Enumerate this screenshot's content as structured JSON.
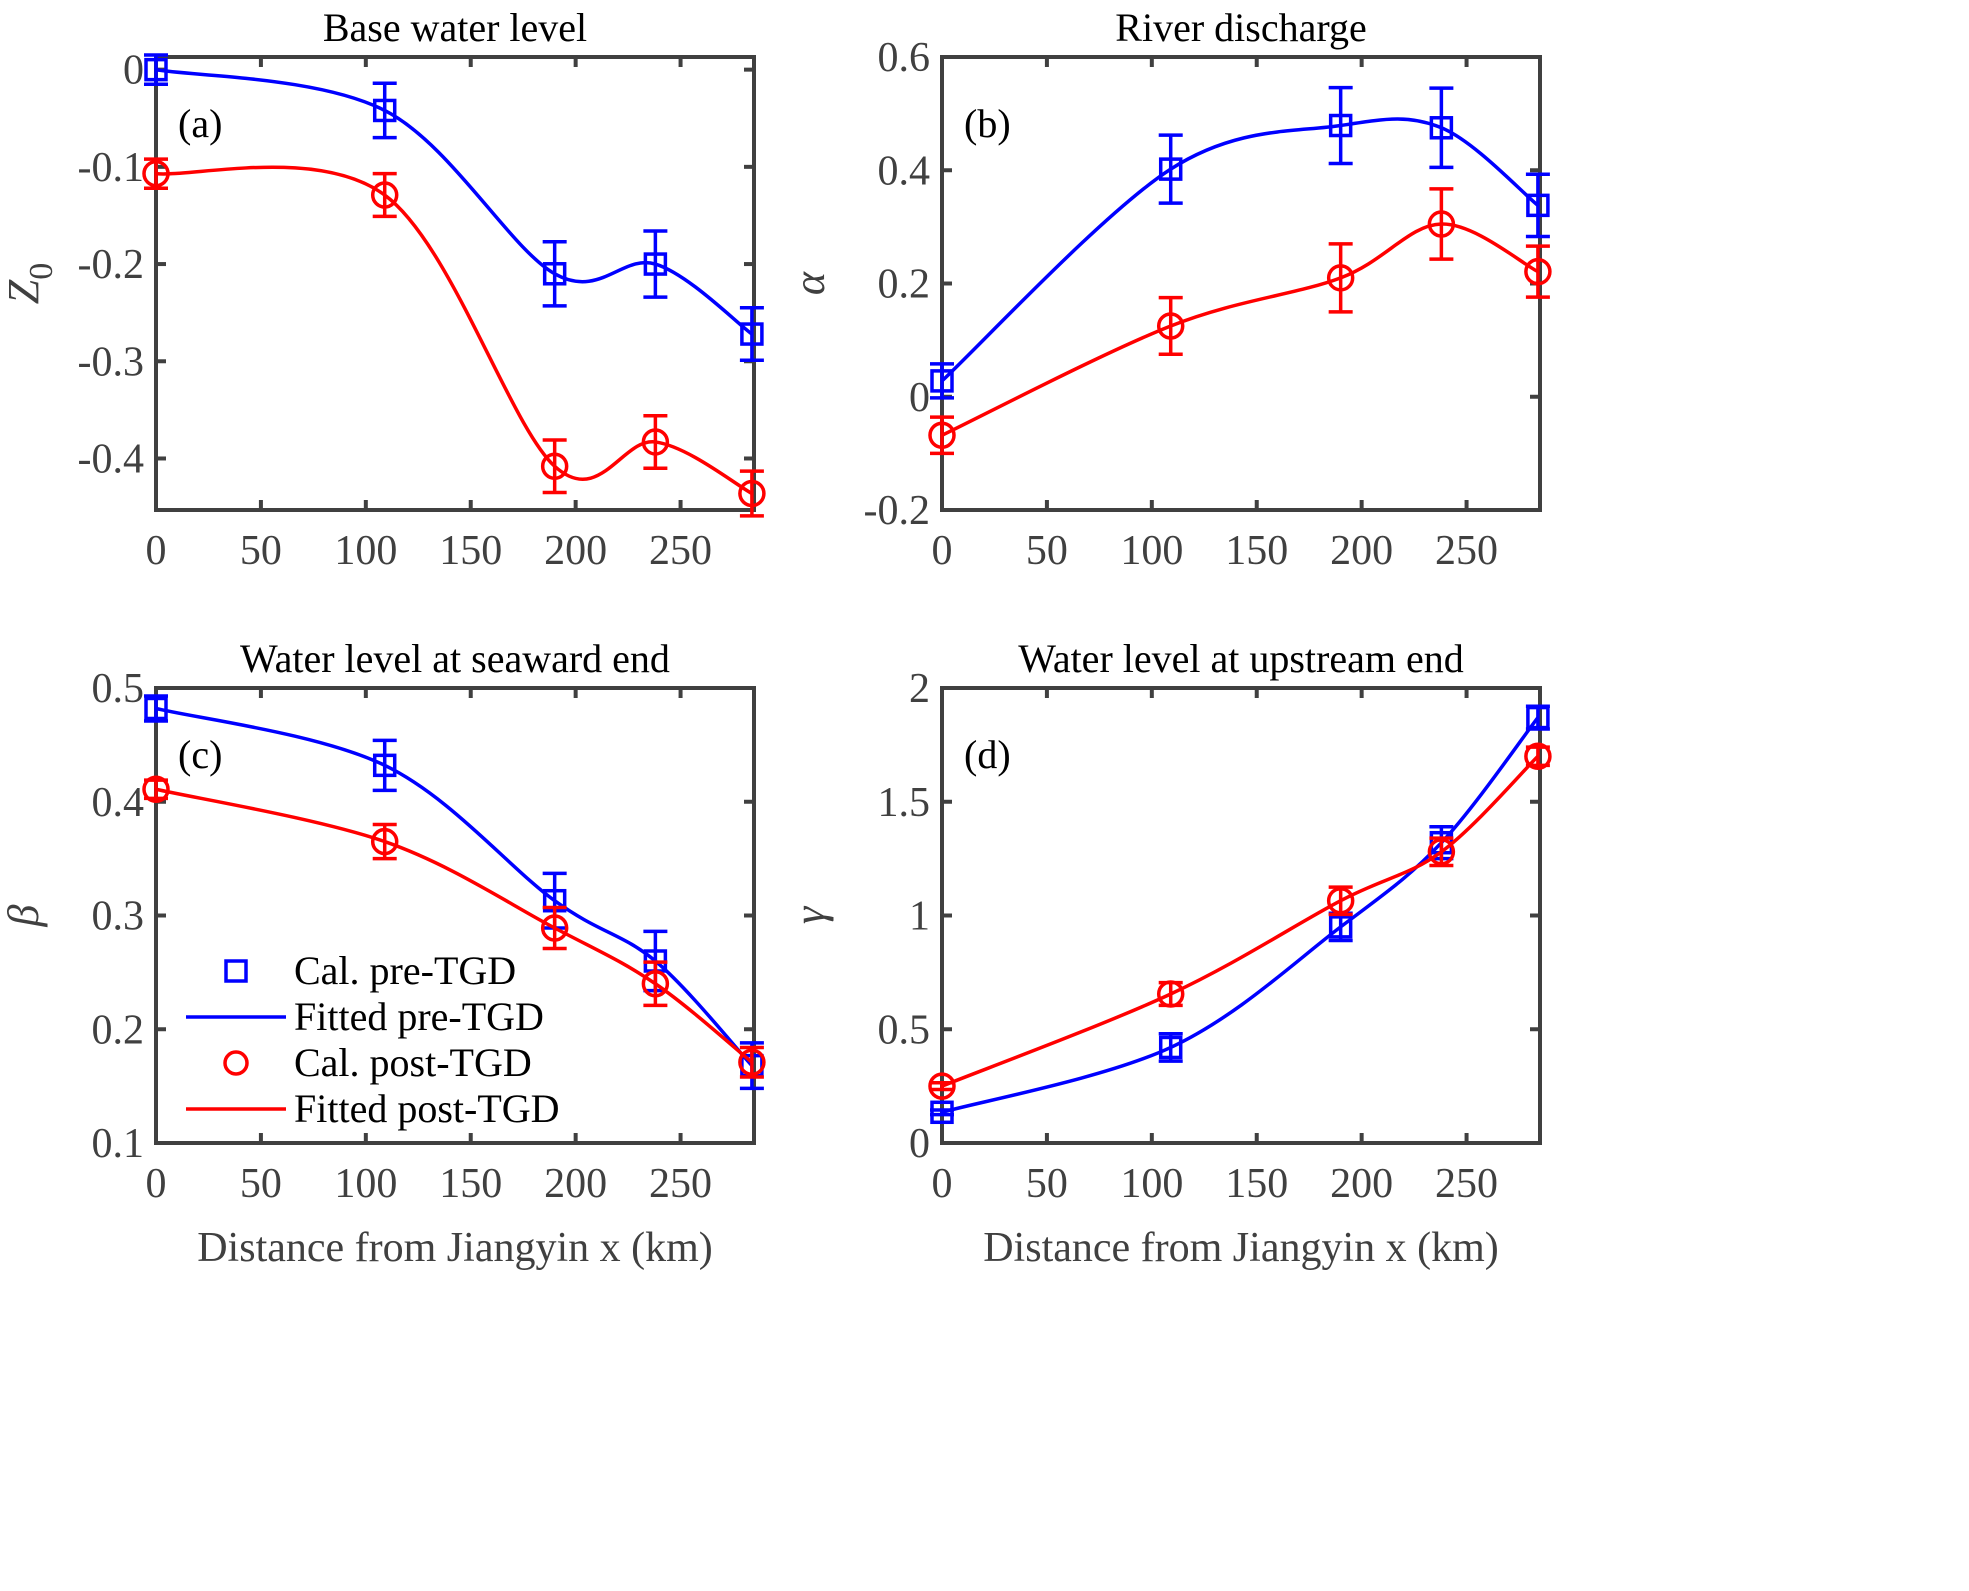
{
  "chart_data": [
    {
      "type": "line",
      "panel": "(a)",
      "title": "Base water level",
      "xlabel": "",
      "ylabel": "Z",
      "ylabel_subscript": "0",
      "xlim": [
        0,
        285
      ],
      "ylim": [
        -0.453,
        0.013
      ],
      "xticks": [
        0,
        50,
        100,
        150,
        200,
        250
      ],
      "xtick_labels": [
        "0",
        "50",
        "100",
        "150",
        "200",
        "250"
      ],
      "yticks": [
        0,
        -0.1,
        -0.2,
        -0.3,
        -0.4
      ],
      "ytick_labels": [
        "0",
        "-0.1",
        "-0.2",
        "-0.3",
        "-0.4"
      ],
      "x": [
        0,
        109,
        190,
        238,
        284
      ],
      "series": [
        {
          "name": "Cal. pre-TGD",
          "kind": "marker",
          "marker": "square",
          "color": "#0000ff",
          "values": [
            0.0,
            -0.042,
            -0.21,
            -0.2,
            -0.272
          ],
          "errors": [
            0.015,
            0.028,
            0.033,
            0.034,
            0.027
          ]
        },
        {
          "name": "Fitted pre-TGD",
          "kind": "line",
          "color": "#0000ff",
          "values": [
            0.0,
            -0.042,
            -0.21,
            -0.2,
            -0.272
          ]
        },
        {
          "name": "Cal. post-TGD",
          "kind": "marker",
          "marker": "circle",
          "color": "#ff0000",
          "values": [
            -0.107,
            -0.129,
            -0.408,
            -0.383,
            -0.436
          ],
          "errors": [
            0.015,
            0.022,
            0.027,
            0.027,
            0.023
          ]
        },
        {
          "name": "Fitted post-TGD",
          "kind": "line",
          "color": "#ff0000",
          "values": [
            -0.107,
            -0.129,
            -0.408,
            -0.383,
            -0.436
          ]
        }
      ],
      "grid": false,
      "legend": null
    },
    {
      "type": "line",
      "panel": "(b)",
      "title": "River discharge",
      "xlabel": "",
      "ylabel": "α",
      "ylabel_subscript": "",
      "xlim": [
        0,
        285
      ],
      "ylim": [
        -0.2,
        0.6
      ],
      "xticks": [
        0,
        50,
        100,
        150,
        200,
        250
      ],
      "xtick_labels": [
        "0",
        "50",
        "100",
        "150",
        "200",
        "250"
      ],
      "yticks": [
        -0.2,
        0,
        0.2,
        0.4,
        0.6
      ],
      "ytick_labels": [
        "-0.2",
        "0",
        "0.2",
        "0.4",
        "0.6"
      ],
      "x": [
        0,
        109,
        190,
        238,
        284
      ],
      "series": [
        {
          "name": "Cal. pre-TGD",
          "kind": "marker",
          "marker": "square",
          "color": "#0000ff",
          "values": [
            0.028,
            0.402,
            0.479,
            0.475,
            0.338
          ],
          "errors": [
            0.03,
            0.06,
            0.067,
            0.07,
            0.055
          ]
        },
        {
          "name": "Fitted pre-TGD",
          "kind": "line",
          "color": "#0000ff",
          "values": [
            0.028,
            0.402,
            0.479,
            0.475,
            0.338
          ]
        },
        {
          "name": "Cal. post-TGD",
          "kind": "marker",
          "marker": "circle",
          "color": "#ff0000",
          "values": [
            -0.068,
            0.125,
            0.21,
            0.305,
            0.221
          ],
          "errors": [
            0.032,
            0.05,
            0.06,
            0.062,
            0.045
          ]
        },
        {
          "name": "Fitted post-TGD",
          "kind": "line",
          "color": "#ff0000",
          "values": [
            -0.068,
            0.125,
            0.21,
            0.305,
            0.221
          ]
        }
      ],
      "grid": false,
      "legend": null
    },
    {
      "type": "line",
      "panel": "(c)",
      "title": "Water level at seaward end",
      "xlabel": "Distance from Jiangyin x (km)",
      "ylabel": "β",
      "ylabel_subscript": "",
      "xlim": [
        0,
        285
      ],
      "ylim": [
        0.1,
        0.5
      ],
      "xticks": [
        0,
        50,
        100,
        150,
        200,
        250
      ],
      "xtick_labels": [
        "0",
        "50",
        "100",
        "150",
        "200",
        "250"
      ],
      "yticks": [
        0.1,
        0.2,
        0.3,
        0.4,
        0.5
      ],
      "ytick_labels": [
        "0.1",
        "0.2",
        "0.3",
        "0.4",
        "0.5"
      ],
      "x": [
        0,
        109,
        190,
        238,
        284
      ],
      "series": [
        {
          "name": "Cal. pre-TGD",
          "kind": "marker",
          "marker": "square",
          "color": "#0000ff",
          "values": [
            0.482,
            0.432,
            0.313,
            0.26,
            0.168
          ],
          "errors": [
            0.011,
            0.022,
            0.024,
            0.026,
            0.02
          ]
        },
        {
          "name": "Fitted pre-TGD",
          "kind": "line",
          "color": "#0000ff",
          "values": [
            0.482,
            0.432,
            0.313,
            0.26,
            0.168
          ]
        },
        {
          "name": "Cal. post-TGD",
          "kind": "marker",
          "marker": "circle",
          "color": "#ff0000",
          "values": [
            0.411,
            0.365,
            0.289,
            0.24,
            0.171
          ],
          "errors": [
            0.008,
            0.015,
            0.018,
            0.019,
            0.013
          ]
        },
        {
          "name": "Fitted post-TGD",
          "kind": "line",
          "color": "#ff0000",
          "values": [
            0.411,
            0.365,
            0.289,
            0.24,
            0.171
          ]
        }
      ],
      "grid": false,
      "legend": "bottom-left",
      "legend_entries": [
        "Cal. pre-TGD",
        "Fitted pre-TGD",
        "Cal. post-TGD",
        "Fitted post-TGD"
      ]
    },
    {
      "type": "line",
      "panel": "(d)",
      "title": "Water level at upstream end",
      "xlabel": "Distance from Jiangyin x (km)",
      "ylabel": "γ",
      "ylabel_subscript": "",
      "xlim": [
        0,
        285
      ],
      "ylim": [
        0,
        2
      ],
      "xticks": [
        0,
        50,
        100,
        150,
        200,
        250
      ],
      "xtick_labels": [
        "0",
        "50",
        "100",
        "150",
        "200",
        "250"
      ],
      "yticks": [
        0,
        0.5,
        1,
        1.5,
        2
      ],
      "ytick_labels": [
        "0",
        "0.5",
        "1",
        "1.5",
        "2"
      ],
      "x": [
        0,
        109,
        190,
        238,
        284
      ],
      "series": [
        {
          "name": "Cal. pre-TGD",
          "kind": "marker",
          "marker": "square",
          "color": "#0000ff",
          "values": [
            0.135,
            0.42,
            0.95,
            1.32,
            1.87
          ],
          "errors": [
            0.01,
            0.06,
            0.06,
            0.07,
            0.05
          ]
        },
        {
          "name": "Fitted pre-TGD",
          "kind": "line",
          "color": "#0000ff",
          "values": [
            0.135,
            0.42,
            0.95,
            1.32,
            1.87
          ]
        },
        {
          "name": "Cal. post-TGD",
          "kind": "marker",
          "marker": "circle",
          "color": "#ff0000",
          "values": [
            0.25,
            0.655,
            1.065,
            1.28,
            1.7
          ],
          "errors": [
            0.015,
            0.05,
            0.06,
            0.06,
            0.04
          ]
        },
        {
          "name": "Fitted post-TGD",
          "kind": "line",
          "color": "#ff0000",
          "values": [
            0.25,
            0.655,
            1.065,
            1.28,
            1.7
          ]
        }
      ],
      "grid": false,
      "legend": null
    }
  ]
}
